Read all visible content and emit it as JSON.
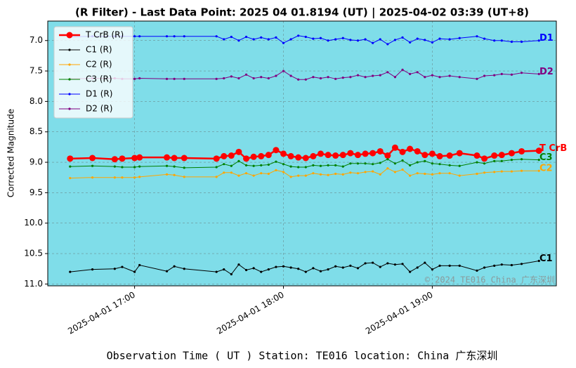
{
  "chart_data": {
    "type": "line",
    "title": "(R Filter) - Last Data Point: 2025 04 01.8194 (UT) | 2025-04-02 03:39 (UT+8)",
    "xlabel": "Observation Time ( UT )  Station: TE016 location: China 广东深圳",
    "ylabel": "Corrected Magnitude",
    "watermark": "© 2024 TE016 China 广东深圳",
    "y_inverted": true,
    "grid": true,
    "legend": "upper left",
    "background": "#7fdde9",
    "xlim": [
      "2025-04-01 16:25",
      "2025-04-01 19:50"
    ],
    "xticks": [
      "2025-04-01 17:00",
      "2025-04-01 18:00",
      "2025-04-01 19:00"
    ],
    "ylim": [
      6.68,
      11.03
    ],
    "yticks": [
      {
        "value": 7,
        "label": "7.0"
      },
      7.5,
      {
        "value": 8,
        "label": "8.0"
      },
      8.5,
      {
        "value": 9,
        "label": "9.0"
      },
      9.5,
      {
        "value": 10,
        "label": "10.0"
      },
      10.5,
      {
        "value": 11,
        "label": "11.0"
      }
    ],
    "x": [
      "2025-04-01 16:34",
      "2025-04-01 16:43",
      "2025-04-01 16:52",
      "2025-04-01 16:55",
      "2025-04-01 17:00",
      "2025-04-01 17:02",
      "2025-04-01 17:13",
      "2025-04-01 17:16",
      "2025-04-01 17:20",
      "2025-04-01 17:33",
      "2025-04-01 17:36",
      "2025-04-01 17:39",
      "2025-04-01 17:42",
      "2025-04-01 17:45",
      "2025-04-01 17:48",
      "2025-04-01 17:51",
      "2025-04-01 17:54",
      "2025-04-01 17:57",
      "2025-04-01 18:00",
      "2025-04-01 18:03",
      "2025-04-01 18:06",
      "2025-04-01 18:09",
      "2025-04-01 18:12",
      "2025-04-01 18:15",
      "2025-04-01 18:18",
      "2025-04-01 18:21",
      "2025-04-01 18:24",
      "2025-04-01 18:27",
      "2025-04-01 18:30",
      "2025-04-01 18:33",
      "2025-04-01 18:36",
      "2025-04-01 18:39",
      "2025-04-01 18:42",
      "2025-04-01 18:45",
      "2025-04-01 18:48",
      "2025-04-01 18:51",
      "2025-04-01 18:54",
      "2025-04-01 18:57",
      "2025-04-01 19:00",
      "2025-04-01 19:03",
      "2025-04-01 19:07",
      "2025-04-01 19:11",
      "2025-04-01 19:18",
      "2025-04-01 19:21",
      "2025-04-01 19:25",
      "2025-04-01 19:28",
      "2025-04-01 19:32",
      "2025-04-01 19:36",
      "2025-04-01 19:43"
    ],
    "series": [
      {
        "name": "T CrB (R)",
        "end_label": "T CrB",
        "color": "#ff0000",
        "values": [
          8.94,
          8.93,
          8.95,
          8.94,
          8.93,
          8.92,
          8.92,
          8.93,
          8.93,
          8.94,
          8.9,
          8.89,
          8.83,
          8.94,
          8.91,
          8.9,
          8.88,
          8.8,
          8.86,
          8.9,
          8.92,
          8.93,
          8.9,
          8.86,
          8.88,
          8.89,
          8.88,
          8.85,
          8.88,
          8.86,
          8.85,
          8.82,
          8.89,
          8.76,
          8.83,
          8.78,
          8.82,
          8.88,
          8.86,
          8.9,
          8.89,
          8.85,
          8.89,
          8.94,
          8.89,
          8.88,
          8.85,
          8.82,
          8.81
        ]
      },
      {
        "name": "C1 (R)",
        "end_label": "C1",
        "color": "#000000",
        "values": [
          10.8,
          10.76,
          10.75,
          10.72,
          10.8,
          10.69,
          10.79,
          10.71,
          10.75,
          10.8,
          10.76,
          10.84,
          10.68,
          10.77,
          10.74,
          10.8,
          10.76,
          10.72,
          10.71,
          10.73,
          10.75,
          10.8,
          10.74,
          10.79,
          10.76,
          10.71,
          10.73,
          10.7,
          10.74,
          10.66,
          10.65,
          10.72,
          10.66,
          10.68,
          10.67,
          10.8,
          10.73,
          10.65,
          10.76,
          10.7,
          10.7,
          10.7,
          10.78,
          10.73,
          10.7,
          10.68,
          10.69,
          10.67,
          10.62
        ]
      },
      {
        "name": "C2 (R)",
        "end_label": "C2",
        "color": "#ffa500",
        "values": [
          9.26,
          9.25,
          9.25,
          9.25,
          9.25,
          9.24,
          9.2,
          9.21,
          9.24,
          9.24,
          9.17,
          9.17,
          9.22,
          9.18,
          9.22,
          9.18,
          9.19,
          9.13,
          9.16,
          9.24,
          9.22,
          9.22,
          9.18,
          9.2,
          9.21,
          9.19,
          9.2,
          9.17,
          9.18,
          9.16,
          9.15,
          9.2,
          9.1,
          9.16,
          9.12,
          9.22,
          9.18,
          9.19,
          9.2,
          9.18,
          9.18,
          9.22,
          9.19,
          9.17,
          9.16,
          9.15,
          9.15,
          9.14,
          9.14
        ]
      },
      {
        "name": "C3 (R)",
        "end_label": "C3",
        "color": "#008000",
        "values": [
          9.07,
          9.06,
          9.07,
          9.08,
          9.08,
          9.07,
          9.06,
          9.07,
          9.09,
          9.08,
          9.03,
          9.06,
          8.98,
          9.05,
          9.06,
          9.05,
          9.04,
          8.99,
          9.03,
          9.07,
          9.08,
          9.08,
          9.05,
          9.06,
          9.05,
          9.05,
          9.07,
          9.02,
          9.02,
          9.02,
          9.03,
          9.01,
          8.95,
          9.02,
          8.97,
          9.05,
          9.0,
          8.98,
          9.02,
          9.03,
          9.05,
          9.06,
          9.0,
          9.02,
          8.98,
          8.98,
          8.96,
          8.95,
          8.96
        ]
      },
      {
        "name": "D1 (R)",
        "end_label": "D1",
        "color": "#0000ff",
        "values": [
          6.94,
          6.93,
          6.93,
          6.93,
          6.93,
          6.93,
          6.93,
          6.93,
          6.93,
          6.93,
          6.98,
          6.94,
          7.0,
          6.94,
          6.98,
          6.95,
          6.98,
          6.95,
          7.04,
          6.98,
          6.92,
          6.94,
          6.97,
          6.96,
          7.0,
          6.98,
          6.96,
          6.99,
          7.0,
          6.98,
          7.04,
          6.98,
          7.06,
          6.99,
          6.95,
          7.03,
          6.97,
          6.99,
          7.03,
          6.97,
          6.98,
          6.96,
          6.93,
          6.97,
          7.0,
          7.0,
          7.02,
          7.02,
          7.0
        ]
      },
      {
        "name": "D2 (R)",
        "end_label": "D2",
        "color": "#800080",
        "values": [
          7.63,
          7.62,
          7.62,
          7.63,
          7.63,
          7.62,
          7.63,
          7.63,
          7.63,
          7.63,
          7.62,
          7.59,
          7.62,
          7.56,
          7.62,
          7.6,
          7.62,
          7.58,
          7.5,
          7.58,
          7.64,
          7.64,
          7.6,
          7.62,
          7.6,
          7.63,
          7.61,
          7.6,
          7.57,
          7.6,
          7.58,
          7.57,
          7.52,
          7.6,
          7.48,
          7.55,
          7.52,
          7.6,
          7.57,
          7.6,
          7.58,
          7.6,
          7.63,
          7.58,
          7.57,
          7.55,
          7.56,
          7.53,
          7.55
        ]
      }
    ]
  }
}
